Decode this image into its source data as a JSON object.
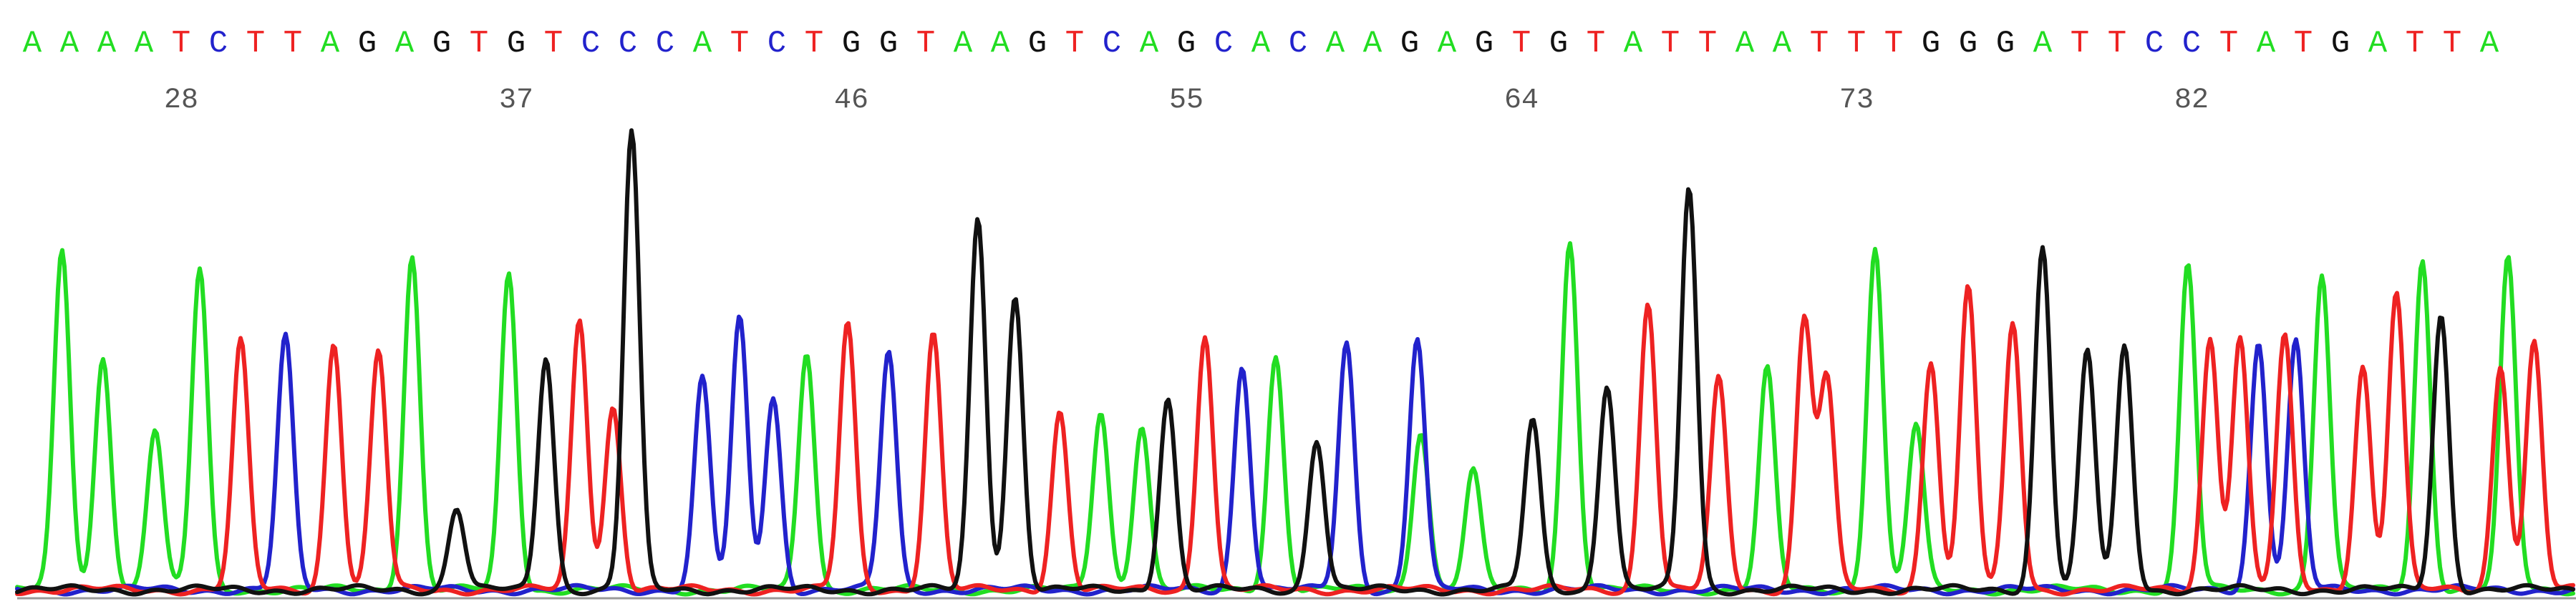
{
  "chart_data": {
    "type": "line",
    "title": "",
    "xlabel": "",
    "ylabel": "",
    "grid": false,
    "legend": "none",
    "colors": {
      "A": "#22dd22",
      "C": "#2222cc",
      "G": "#111111",
      "T": "#ee2222",
      "position_label": "#555555",
      "baseline": "#9a9a9a"
    },
    "sequence": "AAAATCTTAGAGTGTCCCATCTGGTAAGTCAGCACAAGAGTGTATTAATTTGGGATTCCTATGATTA",
    "base_calls": [
      "A",
      "A",
      "A",
      "A",
      "T",
      "C",
      "T",
      "T",
      "A",
      "G",
      "A",
      "G",
      "T",
      "G",
      "T",
      "C",
      "C",
      "C",
      "A",
      "T",
      "C",
      "T",
      "G",
      "G",
      "T",
      "A",
      "A",
      "G",
      "T",
      "C",
      "A",
      "G",
      "C",
      "A",
      "C",
      "A",
      "A",
      "G",
      "A",
      "G",
      "T",
      "G",
      "T",
      "A",
      "T",
      "T",
      "A",
      "A",
      "T",
      "T",
      "T",
      "G",
      "G",
      "G",
      "A",
      "T",
      "T",
      "C",
      "C",
      "T",
      "A",
      "T",
      "G",
      "A",
      "T",
      "T",
      "A"
    ],
    "position_labels": [
      28,
      37,
      46,
      55,
      64,
      73,
      82
    ],
    "peaks": {
      "A": [
        [
          0.8,
          0.74
        ],
        [
          1.9,
          0.51
        ],
        [
          3.3,
          0.35
        ],
        [
          4.5,
          0.7
        ],
        [
          10.2,
          0.73
        ],
        [
          12.8,
          0.69
        ],
        [
          20.8,
          0.52
        ],
        [
          28.7,
          0.39
        ],
        [
          29.8,
          0.36
        ],
        [
          33.4,
          0.51
        ],
        [
          37.3,
          0.35
        ],
        [
          38.7,
          0.26
        ],
        [
          41.3,
          0.76
        ],
        [
          46.6,
          0.48
        ],
        [
          49.5,
          0.75
        ],
        [
          50.6,
          0.36
        ],
        [
          57.9,
          0.71
        ],
        [
          61.5,
          0.69
        ],
        [
          64.2,
          0.72
        ],
        [
          66.5,
          0.72
        ]
      ],
      "C": [
        [
          6.8,
          0.55
        ],
        [
          18.0,
          0.46
        ],
        [
          19.0,
          0.59
        ],
        [
          19.9,
          0.42
        ],
        [
          23.0,
          0.52
        ],
        [
          32.5,
          0.49
        ],
        [
          35.3,
          0.54
        ],
        [
          37.2,
          0.55
        ],
        [
          59.8,
          0.54
        ],
        [
          60.8,
          0.54
        ]
      ],
      "G": [
        [
          11.4,
          0.18
        ],
        [
          13.8,
          0.51
        ],
        [
          16.1,
          1.0
        ],
        [
          25.4,
          0.81
        ],
        [
          26.4,
          0.64
        ],
        [
          30.5,
          0.42
        ],
        [
          34.5,
          0.33
        ],
        [
          40.3,
          0.37
        ],
        [
          42.3,
          0.45
        ],
        [
          44.5,
          0.88
        ],
        [
          54.0,
          0.75
        ],
        [
          55.2,
          0.52
        ],
        [
          56.2,
          0.53
        ],
        [
          64.7,
          0.6
        ]
      ],
      "T": [
        [
          5.6,
          0.54
        ],
        [
          8.1,
          0.54
        ],
        [
          9.3,
          0.52
        ],
        [
          14.7,
          0.59
        ],
        [
          15.6,
          0.4
        ],
        [
          21.9,
          0.58
        ],
        [
          24.2,
          0.56
        ],
        [
          27.6,
          0.39
        ],
        [
          31.5,
          0.56
        ],
        [
          43.4,
          0.63
        ],
        [
          45.3,
          0.46
        ],
        [
          47.6,
          0.59
        ],
        [
          48.2,
          0.46
        ],
        [
          51.0,
          0.5
        ],
        [
          52.0,
          0.66
        ],
        [
          53.2,
          0.58
        ],
        [
          58.5,
          0.55
        ],
        [
          59.3,
          0.55
        ],
        [
          60.5,
          0.55
        ],
        [
          62.6,
          0.49
        ],
        [
          63.5,
          0.65
        ],
        [
          66.3,
          0.49
        ],
        [
          67.2,
          0.54
        ]
      ]
    }
  }
}
